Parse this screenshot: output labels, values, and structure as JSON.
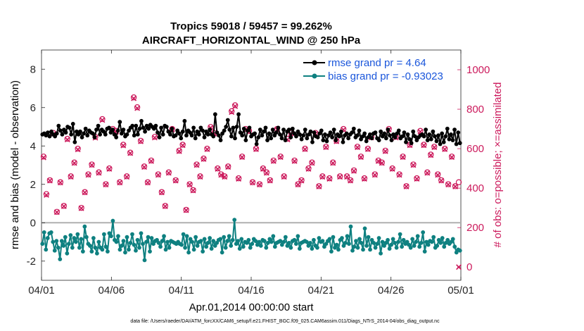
{
  "chart_data": {
    "type": "line",
    "title": "Tropics 59018 / 59457 = 99.262%",
    "subtitle": "AIRCRAFT_HORIZONTAL_WIND @ 250 hPa",
    "xlabel": "Apr.01,2014 00:00:00 start",
    "ylabel_left": "rmse and bias (model - observation)",
    "ylabel_right": "# of obs: o=possible; ×=assimilated",
    "footnote": "data file: /Users/raeder/DAI/ATM_forcXX/CAM6_setup/f.e21.FHIST_BGC.f09_025.CAM6assim.011/Diags_NTrS_2014-04/obs_diag_output.nc",
    "xlim": [
      0,
      30
    ],
    "ylim_left": [
      -3,
      9
    ],
    "ylim_right": [
      -67,
      1100
    ],
    "x_ticks": [
      0,
      5,
      10,
      15,
      20,
      25,
      30
    ],
    "x_tick_labels": [
      "04/01",
      "04/06",
      "04/11",
      "04/16",
      "04/21",
      "04/26",
      "05/01"
    ],
    "y_left_ticks": [
      -2,
      0,
      2,
      4,
      6,
      8
    ],
    "y_left_tick_labels": [
      "-2",
      "0",
      "2",
      "4",
      "6",
      "8"
    ],
    "y_right_ticks": [
      0,
      200,
      400,
      600,
      800,
      1000
    ],
    "y_right_tick_labels": [
      "0",
      "200",
      "400",
      "600",
      "800",
      "1000"
    ],
    "legend_position": "top-right",
    "series": [
      {
        "name": "rmse grand pr = 4.64",
        "axis": "left",
        "color": "#000000",
        "marker": "circle",
        "values": [
          4.6,
          4.65,
          4.55,
          4.7,
          4.5,
          4.75,
          4.6,
          4.5,
          4.65,
          5.05,
          4.8,
          4.6,
          4.85,
          4.7,
          5.0,
          4.95,
          4.6,
          5.15,
          4.2,
          4.75,
          4.6,
          4.75,
          4.45,
          4.65,
          4.9,
          4.55,
          4.8,
          4.7,
          4.65,
          4.45,
          4.85,
          5.05,
          4.6,
          4.85,
          4.75,
          4.6,
          4.9,
          4.95,
          4.7,
          4.85,
          4.6,
          4.45,
          4.8,
          5.25,
          4.65,
          4.85,
          4.5,
          4.6,
          4.8,
          4.95,
          5.05,
          4.55,
          5.05,
          4.6,
          4.9,
          5.3,
          4.95,
          4.75,
          5.05,
          4.9,
          5.1,
          5.0,
          4.9,
          5.05,
          4.7,
          4.45,
          4.95,
          4.6,
          5.05,
          5.0,
          4.75,
          4.6,
          4.9,
          4.5,
          4.55,
          4.8,
          4.65,
          4.4,
          4.75,
          5.3,
          4.55,
          4.8,
          4.7,
          4.55,
          4.95,
          4.4,
          4.75,
          4.6,
          4.95,
          4.8,
          4.45,
          4.75,
          4.6,
          4.85,
          4.6,
          4.5,
          5.65,
          4.7,
          4.55,
          4.3,
          4.65,
          4.8,
          5.0,
          5.35,
          4.85,
          4.5,
          4.95,
          4.4,
          5.0,
          5.65,
          4.7,
          4.55,
          4.9,
          4.3,
          4.8,
          4.95,
          4.5,
          4.6,
          4.65,
          4.1,
          4.45,
          4.85,
          4.55,
          4.75,
          4.95,
          4.3,
          4.65,
          4.4,
          4.85,
          4.55,
          4.7,
          4.95,
          4.6,
          4.4,
          4.85,
          4.3,
          4.75,
          4.85,
          4.45,
          4.9,
          4.65,
          4.5,
          4.75,
          4.6,
          4.35,
          4.55,
          4.85,
          4.4,
          4.6,
          4.75,
          4.2,
          4.7,
          4.5,
          4.45,
          4.65,
          4.8,
          4.3,
          4.6,
          4.25,
          4.55,
          4.7,
          4.45,
          4.85,
          4.3,
          4.6,
          4.5,
          4.75,
          4.2,
          4.55,
          4.65,
          4.4,
          4.6,
          4.7,
          4.9,
          4.45,
          4.55,
          4.8,
          4.35,
          4.5,
          4.65,
          4.25,
          4.45,
          4.6,
          4.4,
          4.65,
          4.7,
          4.4,
          4.3,
          4.75,
          4.5,
          4.65,
          4.4,
          4.85,
          4.55,
          4.3,
          4.6,
          4.45,
          4.65,
          4.8,
          4.4,
          4.5,
          4.7,
          4.2,
          4.6,
          4.35,
          4.15,
          4.75,
          4.5,
          4.3,
          4.45,
          4.55,
          4.6,
          4.5,
          4.85,
          4.3,
          4.6,
          4.35,
          4.75,
          4.5,
          4.25,
          4.55,
          4.1,
          4.65,
          4.2,
          4.5,
          4.9,
          4.35,
          4.6,
          4.3,
          4.85,
          4.1,
          4.7,
          4.15
        ]
      },
      {
        "name": "bias grand pr = -0.93023",
        "axis": "left",
        "color": "#0e8080",
        "marker": "circle",
        "values": [
          -1.1,
          -0.5,
          -1.4,
          -0.8,
          -0.55,
          -0.5,
          -1.0,
          -1.45,
          -0.95,
          -1.3,
          -1.9,
          -0.95,
          -1.2,
          -0.75,
          -1.6,
          -1.1,
          -0.65,
          -1.3,
          -0.8,
          -1.0,
          -0.6,
          -1.3,
          -0.85,
          -1.5,
          -0.2,
          -0.75,
          -1.1,
          -1.2,
          -1.5,
          -0.8,
          -1.3,
          -1.6,
          -1.0,
          -1.3,
          -1.4,
          -0.6,
          -1.25,
          -1.5,
          -0.55,
          -0.7,
          0.1,
          -0.9,
          -1.0,
          -0.7,
          -1.4,
          -1.2,
          -0.95,
          -1.55,
          -0.75,
          -1.4,
          -1.05,
          -0.6,
          -1.15,
          -1.45,
          -0.9,
          -1.3,
          -0.55,
          -1.1,
          -1.95,
          -1.0,
          -0.75,
          -1.5,
          -0.8,
          -1.1,
          -0.95,
          -0.9,
          -1.05,
          -1.25,
          -0.95,
          -0.7,
          -1.4,
          -1.0,
          -1.3,
          -0.95,
          -1.0,
          -1.05,
          -1.1,
          -1.0,
          -1.1,
          -1.15,
          -0.6,
          -1.3,
          -0.7,
          -1.55,
          -0.85,
          -1.0,
          -1.4,
          -0.75,
          -1.2,
          -1.0,
          -0.95,
          -1.5,
          -0.85,
          -1.25,
          -1.05,
          -0.8,
          -1.35,
          -0.95,
          -1.2,
          -1.05,
          -0.9,
          -0.85,
          -1.55,
          -0.75,
          -1.3,
          -0.95,
          -0.7,
          -1.2,
          -0.9,
          0.15,
          -1.1,
          -0.95,
          -1.35,
          -0.85,
          -1.25,
          -1.0,
          -1.05,
          -0.9,
          -1.3,
          -1.1,
          -0.85,
          -0.95,
          -1.15,
          -1.0,
          -1.2,
          -0.9,
          -0.95,
          -1.3,
          -1.05,
          -0.85,
          -1.0,
          -0.7,
          -1.25,
          -1.05,
          -1.0,
          -0.95,
          -1.15,
          -1.0,
          -0.75,
          -1.2,
          -1.05,
          -1.3,
          -0.95,
          -0.9,
          -1.1,
          -0.7,
          -1.35,
          -1.05,
          -1.0,
          -0.95,
          -1.0,
          -1.2,
          -1.05,
          -1.35,
          -0.9,
          -1.2,
          -1.3,
          -0.8,
          -1.0,
          -0.95,
          -1.25,
          -1.1,
          -0.95,
          -0.85,
          -1.5,
          -0.75,
          -1.3,
          -1.15,
          -1.4,
          -0.9,
          -0.8,
          -1.2,
          -1.05,
          -0.7,
          -1.1,
          -0.2,
          -1.45,
          -1.25,
          -0.95,
          -1.3,
          -0.85,
          -1.05,
          -1.4,
          -0.3,
          -1.2,
          -0.75,
          -1.4,
          -0.9,
          -1.05,
          -1.3,
          -1.1,
          -0.8,
          -1.6,
          -1.0,
          -1.2,
          -1.05,
          -0.9,
          -1.35,
          -1.15,
          -0.85,
          -1.05,
          -1.3,
          -1.0,
          -0.6,
          -1.25,
          -0.9,
          -1.1,
          -1.0,
          -1.15,
          -1.3,
          -0.85,
          -1.2,
          -1.0,
          -0.7,
          -1.25,
          -1.05,
          -0.5,
          -1.5,
          -1.0,
          -1.15,
          -0.95,
          -1.0,
          -0.75,
          -1.3,
          -1.2,
          -0.9,
          -1.05,
          -0.8,
          -1.25,
          -1.05,
          -0.9,
          -1.1,
          -1.0,
          -0.85,
          -1.25,
          -1.55,
          -1.4,
          -1.45
        ]
      },
      {
        "name": "possible (o)",
        "axis": "right",
        "color": "#cc1a5c",
        "marker": "o",
        "x": [
          0.15,
          0.35,
          0.6,
          0.85,
          1.1,
          1.35,
          1.6,
          1.85,
          2.1,
          2.35,
          2.6,
          2.85,
          3.1,
          3.35,
          3.6,
          3.85,
          4.1,
          4.35,
          4.6,
          4.85,
          5.1,
          5.35,
          5.6,
          5.85,
          6.1,
          6.35,
          6.6,
          6.85,
          7.1,
          7.35,
          7.6,
          7.85,
          8.1,
          8.35,
          8.6,
          8.85,
          9.1,
          9.35,
          9.6,
          9.85,
          10.1,
          10.35,
          10.6,
          10.85,
          11.1,
          11.35,
          11.6,
          11.85,
          12.1,
          12.35,
          12.6,
          12.85,
          13.1,
          13.35,
          13.6,
          13.85,
          14.1,
          14.35,
          14.6,
          14.85,
          15.1,
          15.35,
          15.6,
          15.85,
          16.1,
          16.35,
          16.6,
          16.85,
          17.1,
          17.35,
          17.6,
          17.85,
          18.1,
          18.35,
          18.6,
          18.85,
          19.1,
          19.35,
          19.6,
          19.85,
          20.1,
          20.35,
          20.6,
          20.85,
          21.1,
          21.35,
          21.6,
          21.85,
          22.1,
          22.35,
          22.6,
          22.85,
          23.1,
          23.35,
          23.6,
          23.85,
          24.1,
          24.35,
          24.6,
          24.85,
          25.1,
          25.35,
          25.6,
          25.85,
          26.1,
          26.35,
          26.6,
          26.85,
          27.1,
          27.35,
          27.6,
          27.85,
          28.1,
          28.35,
          28.6,
          28.85,
          29.1,
          29.35,
          29.6,
          29.85
        ],
        "values": [
          560,
          370,
          440,
          680,
          280,
          430,
          310,
          650,
          460,
          530,
          600,
          300,
          380,
          470,
          520,
          660,
          480,
          750,
          420,
          500,
          700,
          690,
          430,
          620,
          460,
          580,
          860,
          810,
          640,
          510,
          430,
          540,
          660,
          470,
          380,
          310,
          480,
          700,
          440,
          590,
          620,
          290,
          420,
          390,
          520,
          460,
          550,
          600,
          710,
          680,
          500,
          470,
          460,
          510,
          790,
          820,
          450,
          560,
          700,
          690,
          430,
          600,
          420,
          500,
          480,
          440,
          540,
          700,
          560,
          460,
          650,
          680,
          540,
          420,
          440,
          600,
          500,
          530,
          680,
          410,
          460,
          610,
          450,
          530,
          640,
          460,
          700,
          460,
          440,
          490,
          610,
          560,
          450,
          600,
          660,
          470,
          540,
          530,
          590,
          700,
          500,
          660,
          470,
          560,
          410,
          620,
          520,
          450,
          690,
          620,
          480,
          570,
          610,
          470,
          440,
          600,
          420,
          560,
          410,
          430
        ]
      },
      {
        "name": "assimilated (×)",
        "axis": "right",
        "color": "#cc1a5c",
        "marker": "x",
        "x": [
          0.15,
          0.35,
          0.6,
          0.85,
          1.1,
          1.35,
          1.6,
          1.85,
          2.1,
          2.35,
          2.6,
          2.85,
          3.1,
          3.35,
          3.6,
          3.85,
          4.1,
          4.35,
          4.6,
          4.85,
          5.1,
          5.35,
          5.6,
          5.85,
          6.1,
          6.35,
          6.6,
          6.85,
          7.1,
          7.35,
          7.6,
          7.85,
          8.1,
          8.35,
          8.6,
          8.85,
          9.1,
          9.35,
          9.6,
          9.85,
          10.1,
          10.35,
          10.6,
          10.85,
          11.1,
          11.35,
          11.6,
          11.85,
          12.1,
          12.35,
          12.6,
          12.85,
          13.1,
          13.35,
          13.6,
          13.85,
          14.1,
          14.35,
          14.6,
          14.85,
          15.1,
          15.35,
          15.6,
          15.85,
          16.1,
          16.35,
          16.6,
          16.85,
          17.1,
          17.35,
          17.6,
          17.85,
          18.1,
          18.35,
          18.6,
          18.85,
          19.1,
          19.35,
          19.6,
          19.85,
          20.1,
          20.35,
          20.6,
          20.85,
          21.1,
          21.35,
          21.6,
          21.85,
          22.1,
          22.35,
          22.6,
          22.85,
          23.1,
          23.35,
          23.6,
          23.85,
          24.1,
          24.35,
          24.6,
          24.85,
          25.1,
          25.35,
          25.6,
          25.85,
          26.1,
          26.35,
          26.6,
          26.85,
          27.1,
          27.35,
          27.6,
          27.85,
          28.1,
          28.35,
          28.6,
          28.85,
          29.1,
          29.35,
          29.6,
          29.85
        ],
        "values": [
          555,
          365,
          438,
          675,
          278,
          428,
          308,
          646,
          457,
          527,
          596,
          298,
          378,
          467,
          517,
          655,
          477,
          745,
          418,
          497,
          696,
          686,
          428,
          616,
          457,
          577,
          855,
          805,
          637,
          507,
          428,
          537,
          656,
          467,
          378,
          308,
          477,
          696,
          438,
          587,
          617,
          288,
          418,
          388,
          517,
          457,
          547,
          597,
          706,
          676,
          497,
          467,
          457,
          507,
          785,
          815,
          447,
          557,
          696,
          686,
          428,
          597,
          418,
          497,
          477,
          438,
          537,
          696,
          557,
          457,
          646,
          676,
          537,
          418,
          438,
          597,
          497,
          527,
          676,
          408,
          457,
          607,
          447,
          527,
          637,
          457,
          696,
          457,
          438,
          487,
          607,
          557,
          447,
          597,
          656,
          467,
          537,
          527,
          587,
          696,
          497,
          656,
          467,
          557,
          408,
          617,
          517,
          447,
          686,
          617,
          477,
          567,
          607,
          467,
          438,
          597,
          418,
          557,
          408,
          0
        ]
      }
    ]
  }
}
